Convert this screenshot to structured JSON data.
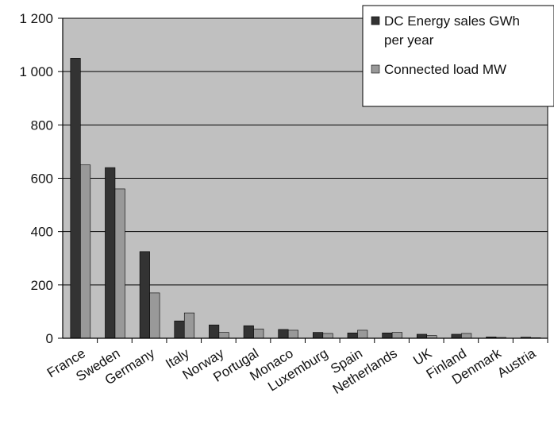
{
  "chart_data": {
    "type": "bar",
    "title": "",
    "xlabel": "",
    "ylabel": "",
    "ylim": [
      0,
      1200
    ],
    "yticks": [
      0,
      200,
      400,
      600,
      800,
      1000,
      1200
    ],
    "ytick_labels": [
      "0",
      "200",
      "400",
      "600",
      "800",
      "1 000",
      "1 200"
    ],
    "grid": "horizontal",
    "legend_position": "top-right",
    "categories": [
      "France",
      "Sweden",
      "Germany",
      "Italy",
      "Norway",
      "Portugal",
      "Monaco",
      "Luxemburg",
      "Spain",
      "Netherlands",
      "UK",
      "Finland",
      "Denmark",
      "Austria"
    ],
    "series": [
      {
        "name": "DC Energy sales GWh per year",
        "legend_lines": [
          "DC Energy sales GWh",
          "per year"
        ],
        "color": "#333333",
        "values": [
          1050,
          640,
          325,
          65,
          50,
          47,
          33,
          22,
          20,
          20,
          15,
          15,
          5,
          4
        ]
      },
      {
        "name": "Connected load MW",
        "legend_lines": [
          "Connected load MW"
        ],
        "color": "#999999",
        "values": [
          650,
          560,
          170,
          95,
          22,
          35,
          30,
          18,
          30,
          22,
          10,
          18,
          3,
          2
        ]
      }
    ],
    "colors": {
      "plot_background": "#c0c0c0",
      "grid": "#000000",
      "axis": "#000000"
    }
  }
}
